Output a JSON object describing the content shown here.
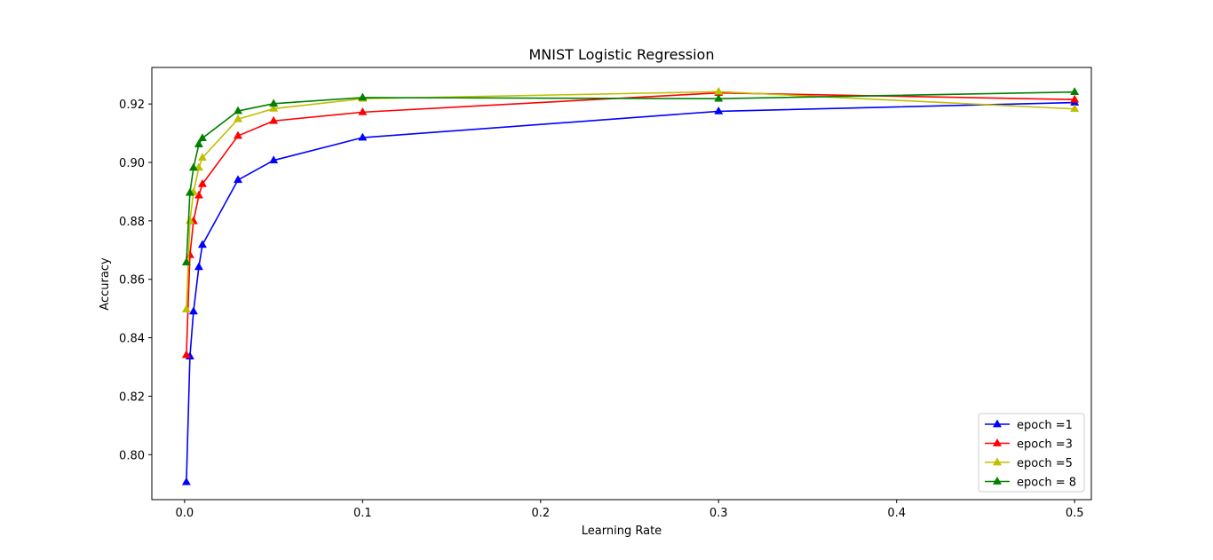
{
  "chart_data": {
    "type": "line",
    "title": "MNIST Logistic Regression",
    "xlabel": "Learning Rate",
    "ylabel": "Accuracy",
    "xlim": [
      -0.0184,
      0.5094
    ],
    "ylim": [
      0.7846,
      0.9325
    ],
    "xticks": [
      0.0,
      0.1,
      0.2,
      0.3,
      0.4,
      0.5
    ],
    "xtick_labels": [
      "0.0",
      "0.1",
      "0.2",
      "0.3",
      "0.4",
      "0.5"
    ],
    "yticks": [
      0.8,
      0.82,
      0.84,
      0.86,
      0.88,
      0.9,
      0.92
    ],
    "ytick_labels": [
      "0.80",
      "0.82",
      "0.84",
      "0.86",
      "0.88",
      "0.90",
      "0.92"
    ],
    "grid": false,
    "legend_position": "lower right",
    "marker": "triangle-up",
    "x": [
      0.001,
      0.003,
      0.005,
      0.008,
      0.01,
      0.03,
      0.05,
      0.1,
      0.3,
      0.5
    ],
    "series": [
      {
        "name": "epoch =1",
        "color": "#0000ff",
        "values": [
          0.7906,
          0.8336,
          0.849,
          0.8642,
          0.8718,
          0.894,
          0.9007,
          0.9085,
          0.9175,
          0.9205
        ]
      },
      {
        "name": "epoch =3",
        "color": "#ff0000",
        "values": [
          0.8341,
          0.8683,
          0.8799,
          0.8887,
          0.8926,
          0.9091,
          0.9142,
          0.9172,
          0.9238,
          0.9215
        ]
      },
      {
        "name": "epoch =5",
        "color": "#bfbf00",
        "values": [
          0.8497,
          0.88,
          0.8898,
          0.8982,
          0.9016,
          0.9148,
          0.9184,
          0.9218,
          0.9242,
          0.9183
        ]
      },
      {
        "name": "epoch = 8",
        "color": "#008000",
        "values": [
          0.8658,
          0.8896,
          0.8982,
          0.9062,
          0.9083,
          0.9176,
          0.9201,
          0.9222,
          0.9218,
          0.9241
        ]
      }
    ]
  }
}
